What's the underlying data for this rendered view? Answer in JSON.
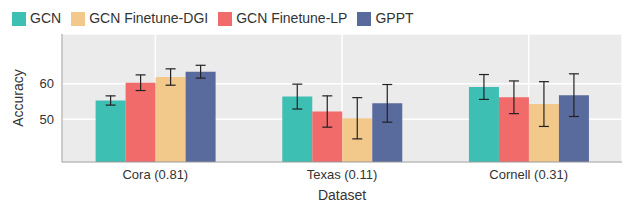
{
  "chart_data": {
    "type": "bar",
    "x_label": "Dataset",
    "y_label": "Accuracy",
    "categories": [
      "Cora (0.81)",
      "Texas (0.11)",
      "Cornell (0.31)"
    ],
    "series": [
      {
        "name": "GCN",
        "color": "#3ebfb4",
        "values": [
          55.3,
          56.4,
          59.1
        ],
        "errors": [
          1.3,
          3.5,
          3.5
        ]
      },
      {
        "name": "GCN Finetune-LP",
        "color": "#f26b6b",
        "values": [
          60.3,
          52.2,
          56.2
        ],
        "errors": [
          2.2,
          4.4,
          4.6
        ]
      },
      {
        "name": "GCN Finetune-DGI",
        "color": "#f3c98b",
        "values": [
          61.9,
          50.3,
          54.3
        ],
        "errors": [
          2.3,
          5.8,
          6.3
        ]
      },
      {
        "name": "GPPT",
        "color": "#596a9d",
        "values": [
          63.4,
          54.5,
          56.8
        ],
        "errors": [
          1.8,
          5.3,
          6.0
        ]
      }
    ],
    "ylim": [
      38,
      74
    ],
    "yticks": [
      50,
      60
    ],
    "grid": true,
    "legend": "top"
  }
}
